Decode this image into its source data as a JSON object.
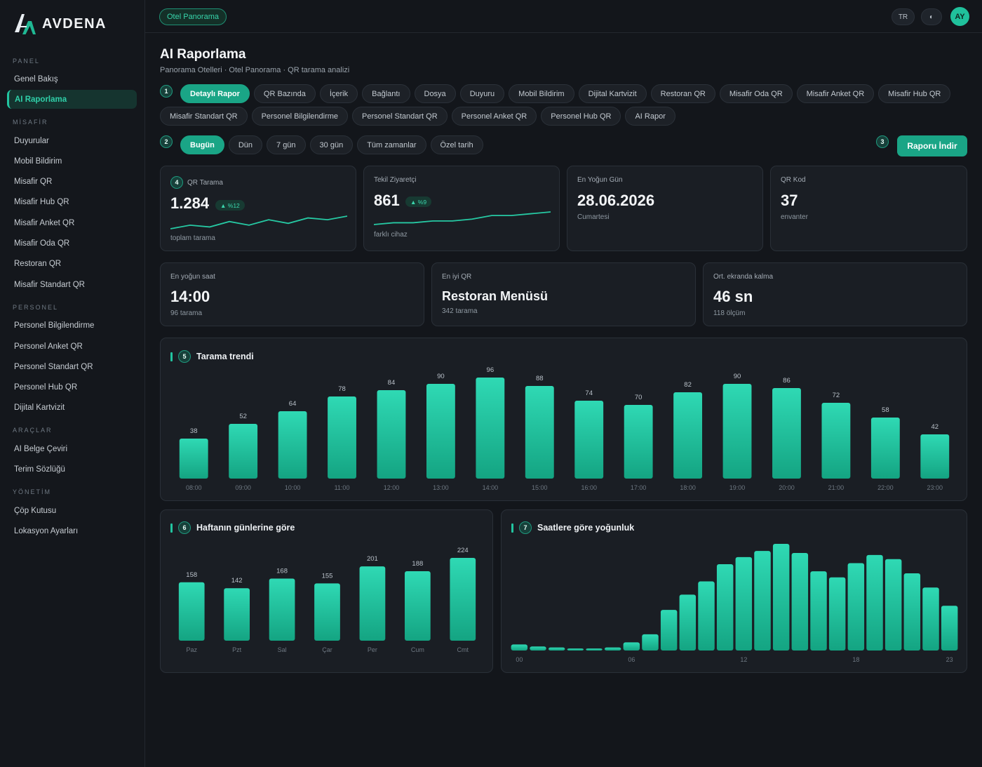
{
  "brand": {
    "name": "AVDENA"
  },
  "sidebar": {
    "sections": [
      {
        "label": "PANEL",
        "items": [
          "Genel Bakış",
          "AI Raporlama"
        ]
      },
      {
        "label": "MİSAFİR",
        "items": [
          "Duyurular",
          "Mobil Bildirim",
          "Misafir QR",
          "Misafir Hub QR",
          "Misafir Anket QR",
          "Misafir Oda QR",
          "Restoran QR",
          "Misafir Standart QR"
        ]
      },
      {
        "label": "PERSONEL",
        "items": [
          "Personel Bilgilendirme",
          "Personel Anket QR",
          "Personel Standart QR",
          "Personel Hub QR",
          "Dijital Kartvizit"
        ]
      },
      {
        "label": "ARAÇLAR",
        "items": [
          "AI Belge Çeviri",
          "Terim Sözlüğü"
        ]
      },
      {
        "label": "YÖNETİM",
        "items": [
          "Çöp Kutusu",
          "Lokasyon Ayarları"
        ]
      }
    ],
    "active": "AI Raporlama"
  },
  "topbar": {
    "hotel": "Otel Panorama",
    "lang": "TR",
    "theme_icon": "◐",
    "avatar": "AY"
  },
  "page": {
    "title": "AI Raporlama",
    "subtitle": "Panorama Otelleri · Otel Panorama · QR tarama analizi"
  },
  "steps": [
    "1",
    "2",
    "3",
    "4",
    "5",
    "6",
    "7"
  ],
  "report_tabs": {
    "row1": [
      "Detaylı Rapor",
      "QR Bazında",
      "İçerik",
      "Bağlantı",
      "Dosya",
      "Duyuru",
      "Mobil Bildirim",
      "Dijital Kartvizit",
      "Restoran QR",
      "Misafir Oda QR",
      "Misafir Anket QR",
      "Misafir Hub QR"
    ],
    "row2": [
      "Misafir Standart QR",
      "Personel Bilgilendirme",
      "Personel Standart QR",
      "Personel Anket QR",
      "Personel Hub QR",
      "AI Rapor"
    ],
    "active": "Detaylı Rapor"
  },
  "date_filters": {
    "items": [
      "Bugün",
      "Dün",
      "7 gün",
      "30 gün",
      "Tüm zamanlar",
      "Özel tarih"
    ],
    "active": "Bugün"
  },
  "download_label": "Raporu İndir",
  "kpis": [
    {
      "label": "QR Tarama",
      "value": "1.284",
      "badge": "▲ %12",
      "foot": "toplam tarama",
      "spark": [
        7,
        9,
        8,
        11,
        9,
        12,
        10,
        13,
        12,
        14
      ]
    },
    {
      "label": "Tekil Ziyaretçi",
      "value": "861",
      "badge": "▲ %9",
      "foot": "farklı cihaz",
      "spark": [
        6,
        7,
        7,
        8,
        8,
        9,
        11,
        11,
        12,
        13
      ]
    },
    {
      "label": "En Yoğun Gün",
      "value": "28.06.2026",
      "foot": "Cumartesi"
    },
    {
      "label": "QR Kod",
      "value": "37",
      "foot": "envanter"
    }
  ],
  "stats": [
    {
      "label": "En yoğun saat",
      "value": "14:00",
      "foot": "96 tarama"
    },
    {
      "label": "En iyi QR",
      "value": "Restoran Menüsü",
      "foot": "342 tarama"
    },
    {
      "label": "Ort. ekranda kalma",
      "value": "46 sn",
      "foot": "118 ölçüm"
    }
  ],
  "chart_titles": {
    "trend": "Tarama trendi",
    "weekday": "Haftanın günlerine göre",
    "hourly": "Saatlere göre yoğunluk"
  },
  "accent": "#1fb893",
  "chart_data": [
    {
      "type": "bar",
      "title": "Tarama trendi",
      "categories": [
        "08:00",
        "09:00",
        "10:00",
        "11:00",
        "12:00",
        "13:00",
        "14:00",
        "15:00",
        "16:00",
        "17:00",
        "18:00",
        "19:00",
        "20:00",
        "21:00",
        "22:00",
        "23:00"
      ],
      "values": [
        38,
        52,
        64,
        78,
        84,
        90,
        96,
        88,
        74,
        70,
        82,
        90,
        86,
        72,
        58,
        42
      ],
      "data_labels": true
    },
    {
      "type": "bar",
      "title": "Haftanın günlerine göre",
      "categories": [
        "Paz",
        "Pzt",
        "Sal",
        "Çar",
        "Per",
        "Cum",
        "Cmt"
      ],
      "values": [
        158,
        142,
        168,
        155,
        201,
        188,
        224
      ],
      "data_labels": true
    },
    {
      "type": "bar",
      "title": "Saatlere göre yoğunluk",
      "categories": [
        "00",
        "01",
        "02",
        "03",
        "04",
        "05",
        "06",
        "07",
        "08",
        "09",
        "10",
        "11",
        "12",
        "13",
        "14",
        "15",
        "16",
        "17",
        "18",
        "19",
        "20",
        "21",
        "22",
        "23"
      ],
      "tick_labels": [
        "00",
        "06",
        "12",
        "18",
        "23"
      ],
      "values": [
        6,
        4,
        3,
        2,
        2,
        3,
        8,
        16,
        40,
        55,
        68,
        85,
        92,
        98,
        105,
        96,
        78,
        72,
        86,
        94,
        90,
        76,
        62,
        44
      ]
    }
  ]
}
